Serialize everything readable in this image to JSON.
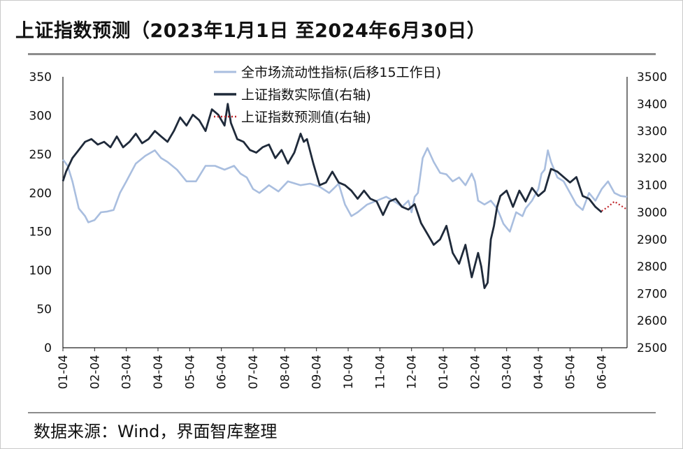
{
  "title": "上证指数预测（2023年1月1日 至2024年6月30日）",
  "source": "数据来源：Wind，界面智库整理",
  "colors": {
    "liquidity": "#a9bedf",
    "actual": "#1f2a3a",
    "forecast": "#c0282d",
    "rule": "#8c8c8c"
  },
  "chart_data": {
    "type": "line",
    "title": "上证指数预测（2023年1月1日 至2024年6月30日）",
    "x_unit": "months since 2023-01-04",
    "x_range": [
      0,
      17.8
    ],
    "x_tick_labels": [
      "01-04",
      "02-04",
      "03-04",
      "04-04",
      "05-04",
      "06-04",
      "07-04",
      "08-04",
      "09-04",
      "10-04",
      "11-04",
      "12-04",
      "01-04",
      "02-04",
      "03-04",
      "04-04",
      "05-04",
      "06-04"
    ],
    "y_left": {
      "min": 0,
      "max": 350,
      "ticks": [
        "0",
        "50",
        "100",
        "150",
        "200",
        "250",
        "300",
        "350"
      ]
    },
    "y_right": {
      "min": 2500,
      "max": 3500,
      "ticks": [
        "2500",
        "2600",
        "2700",
        "2800",
        "2900",
        "3000",
        "3100",
        "3200",
        "3300",
        "3400",
        "3500"
      ]
    },
    "legend": [
      "全市场流动性指标(后移15工作日)",
      "上证指数实际值(右轴)",
      "上证指数预测值(右轴)"
    ],
    "series": [
      {
        "name": "全市场流动性指标(后移15工作日)",
        "axis": "left",
        "x": [
          0,
          0.15,
          0.3,
          0.5,
          0.7,
          0.8,
          1.0,
          1.2,
          1.4,
          1.6,
          1.8,
          2.0,
          2.3,
          2.6,
          2.9,
          3.1,
          3.3,
          3.6,
          3.9,
          4.2,
          4.5,
          4.8,
          5.1,
          5.4,
          5.6,
          5.8,
          6.0,
          6.2,
          6.5,
          6.8,
          7.1,
          7.5,
          7.8,
          8.1,
          8.4,
          8.7,
          8.9,
          9.1,
          9.3,
          9.6,
          9.9,
          10.2,
          10.5,
          10.7,
          10.9,
          11.0,
          11.1,
          11.2,
          11.35,
          11.5,
          11.7,
          11.9,
          12.1,
          12.3,
          12.5,
          12.7,
          12.9,
          13.0,
          13.1,
          13.3,
          13.5,
          13.7,
          13.8,
          13.9,
          14.0,
          14.1,
          14.3,
          14.5,
          14.6,
          14.8,
          15.0,
          15.1,
          15.2,
          15.3,
          15.4,
          15.6,
          15.8,
          16.0,
          16.2,
          16.4,
          16.6,
          16.8,
          17.0,
          17.2,
          17.4,
          17.6,
          17.8
        ],
        "values": [
          243,
          235,
          215,
          180,
          170,
          162,
          165,
          175,
          176,
          178,
          200,
          215,
          238,
          248,
          255,
          245,
          240,
          230,
          215,
          215,
          235,
          235,
          230,
          235,
          225,
          220,
          205,
          200,
          210,
          202,
          215,
          210,
          212,
          208,
          200,
          212,
          185,
          170,
          175,
          185,
          190,
          195,
          188,
          182,
          190,
          175,
          195,
          200,
          245,
          258,
          240,
          226,
          224,
          215,
          220,
          210,
          225,
          215,
          190,
          185,
          190,
          180,
          170,
          160,
          155,
          150,
          175,
          170,
          180,
          190,
          205,
          225,
          230,
          255,
          240,
          220,
          215,
          200,
          185,
          178,
          200,
          190,
          205,
          215,
          200,
          196,
          195
        ]
      },
      {
        "name": "上证指数实际值(右轴)",
        "axis": "right",
        "x": [
          0,
          0.1,
          0.3,
          0.5,
          0.7,
          0.9,
          1.1,
          1.3,
          1.5,
          1.7,
          1.9,
          2.1,
          2.3,
          2.5,
          2.7,
          2.9,
          3.1,
          3.3,
          3.5,
          3.7,
          3.9,
          4.1,
          4.3,
          4.5,
          4.7,
          4.9,
          5.1,
          5.2,
          5.3,
          5.5,
          5.7,
          5.9,
          6.1,
          6.3,
          6.5,
          6.7,
          6.9,
          7.1,
          7.3,
          7.5,
          7.6,
          7.7,
          7.9,
          8.1,
          8.3,
          8.5,
          8.7,
          8.9,
          9.1,
          9.3,
          9.5,
          9.7,
          9.9,
          10.1,
          10.3,
          10.5,
          10.7,
          10.9,
          11.1,
          11.3,
          11.5,
          11.7,
          11.9,
          12.1,
          12.3,
          12.5,
          12.7,
          12.9,
          13.1,
          13.2,
          13.3,
          13.4,
          13.5,
          13.6,
          13.7,
          13.8,
          14.0,
          14.2,
          14.4,
          14.6,
          14.8,
          15.0,
          15.2,
          15.4,
          15.6,
          15.8,
          16.0,
          16.2,
          16.4,
          16.6,
          16.8,
          17.0
        ],
        "values": [
          3115,
          3150,
          3200,
          3230,
          3260,
          3270,
          3250,
          3260,
          3240,
          3280,
          3240,
          3260,
          3290,
          3255,
          3270,
          3300,
          3280,
          3260,
          3300,
          3350,
          3320,
          3360,
          3340,
          3300,
          3380,
          3360,
          3320,
          3400,
          3330,
          3270,
          3260,
          3230,
          3220,
          3240,
          3250,
          3200,
          3230,
          3180,
          3220,
          3290,
          3260,
          3270,
          3180,
          3100,
          3110,
          3150,
          3110,
          3100,
          3080,
          3050,
          3080,
          3050,
          3040,
          2990,
          3040,
          3050,
          3020,
          3010,
          3030,
          2960,
          2920,
          2880,
          2900,
          2950,
          2850,
          2810,
          2880,
          2760,
          2850,
          2800,
          2720,
          2740,
          2900,
          2950,
          3020,
          3060,
          3080,
          3020,
          3080,
          3040,
          3090,
          3060,
          3080,
          3160,
          3150,
          3130,
          3110,
          3130,
          3060,
          3050,
          3020,
          3000
        ]
      },
      {
        "name": "上证指数预测值(右轴)",
        "axis": "right",
        "x": [
          17.0,
          17.2,
          17.4,
          17.6,
          17.8
        ],
        "values": [
          3005,
          3020,
          3040,
          3025,
          3010
        ]
      }
    ]
  }
}
